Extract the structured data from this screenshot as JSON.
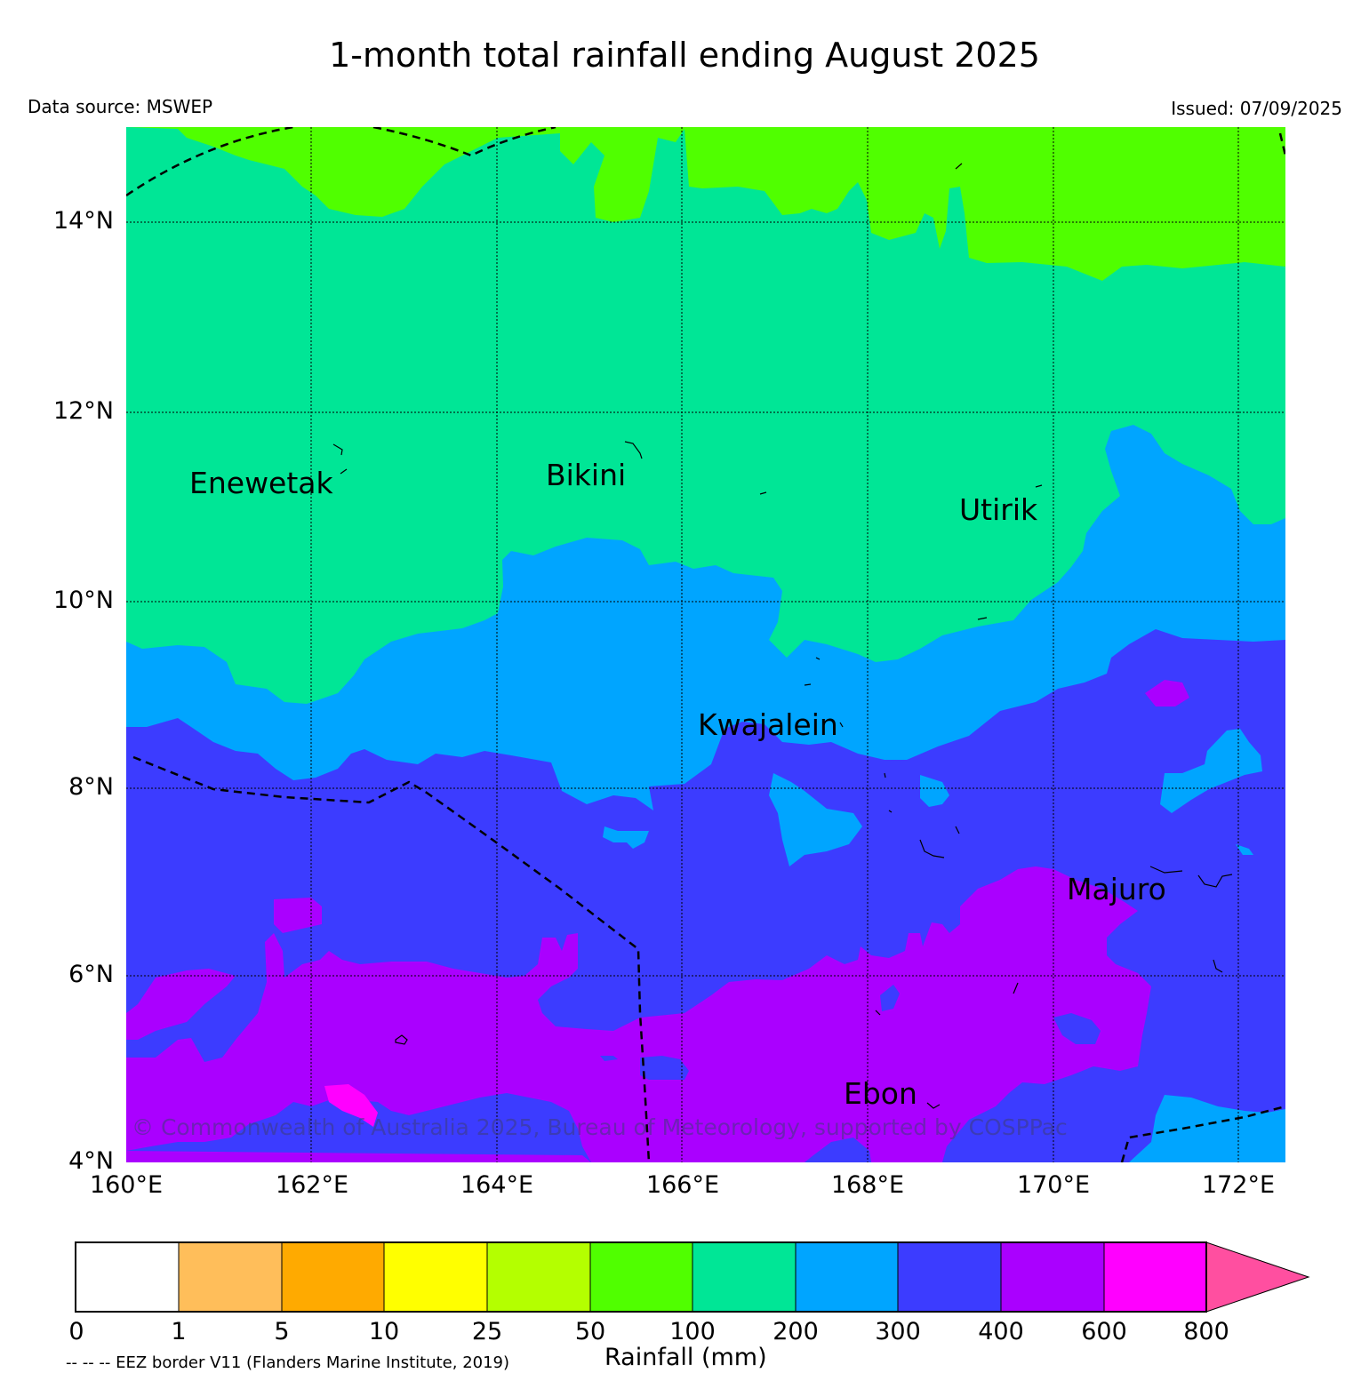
{
  "title": "1-month total rainfall ending August 2025",
  "data_source": "Data source: MSWEP",
  "issued": "Issued: 07/09/2025",
  "lat_labels": [
    "14°N",
    "12°N",
    "10°N",
    "8°N",
    "6°N",
    "4°N"
  ],
  "lon_labels": [
    "160°E",
    "162°E",
    "164°E",
    "166°E",
    "168°E",
    "170°E",
    "172°E"
  ],
  "places": {
    "enewetak": "Enewetak",
    "bikini": "Bikini",
    "utirik": "Utirik",
    "kwajalein": "Kwajalein",
    "majuro": "Majuro",
    "ebon": "Ebon"
  },
  "copyright": "© Commonwealth of Australia 2025, Bureau of Meteorology, supported by COSPPac",
  "colorbar": {
    "ticks": [
      "0",
      "1",
      "5",
      "10",
      "25",
      "50",
      "100",
      "200",
      "300",
      "400",
      "600",
      "800"
    ],
    "colors": [
      "#ffffff",
      "#ffbe5a",
      "#ffaa00",
      "#ffff00",
      "#b4ff00",
      "#50ff00",
      "#00e696",
      "#00a5ff",
      "#3c3cff",
      "#aa00ff",
      "#ff00ff",
      "#ff4fa0"
    ],
    "label": "Rainfall (mm)"
  },
  "eez_note": "-- -- -- EEZ border V11 (Flanders Marine Institute, 2019)"
}
